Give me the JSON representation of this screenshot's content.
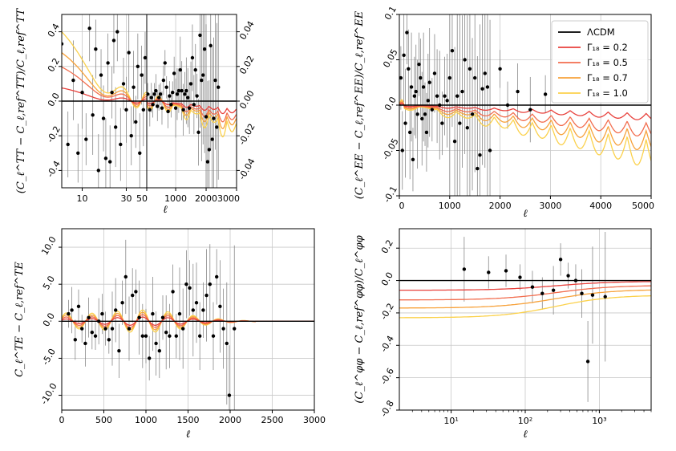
{
  "chart_data": [
    {
      "id": "tt",
      "type": "line",
      "ylabel": "(C_ℓ^TT − C_ℓ,ref^TT)/C_ℓ,ref^TT",
      "xlabel": "ℓ",
      "left_panel": {
        "xscale": "log",
        "xlim": [
          6,
          50
        ],
        "ylim": [
          -0.5,
          0.5
        ],
        "xticks": [
          10,
          30,
          50
        ],
        "xtick_labels": [
          "10",
          "30",
          "50"
        ],
        "yticks": [
          -0.4,
          -0.2,
          0.0,
          0.2,
          0.4
        ],
        "ytick_labels": [
          "-0.4",
          "-0.2",
          "0.0",
          "0.2",
          "0.4"
        ]
      },
      "right_panel": {
        "xscale": "linear",
        "xlim": [
          50,
          3000
        ],
        "ylim": [
          -0.05,
          0.05
        ],
        "xticks": [
          1000,
          2000,
          3000
        ],
        "xtick_labels": [
          "1000",
          "2000",
          "3000"
        ],
        "yticks": [
          -0.04,
          -0.02,
          0.0,
          0.02,
          0.04
        ],
        "ytick_labels": [
          "-0.04",
          "-0.02",
          "0.00",
          "0.02",
          "0.04"
        ]
      },
      "series_low_ell_offset_at_l2": [
        0.0,
        0.1,
        0.27,
        0.38,
        0.55
      ],
      "series_high_ell_suppression_at_3000": [
        0.0,
        0.008,
        0.013,
        0.017,
        0.022
      ],
      "points_low": [
        [
          6,
          0.33
        ],
        [
          7,
          -0.25
        ],
        [
          8,
          0.12
        ],
        [
          9,
          -0.3
        ],
        [
          10,
          0.05
        ],
        [
          11,
          -0.22
        ],
        [
          12,
          0.42
        ],
        [
          13,
          -0.08
        ],
        [
          14,
          0.3
        ],
        [
          15,
          -0.4
        ],
        [
          16,
          0.15
        ],
        [
          17,
          -0.1
        ],
        [
          18,
          -0.33
        ],
        [
          19,
          0.22
        ],
        [
          20,
          -0.35
        ],
        [
          21,
          0.05
        ],
        [
          22,
          0.35
        ],
        [
          23,
          -0.15
        ],
        [
          24,
          0.4
        ],
        [
          26,
          -0.25
        ],
        [
          28,
          0.1
        ],
        [
          30,
          -0.05
        ],
        [
          32,
          0.28
        ],
        [
          34,
          -0.2
        ],
        [
          36,
          0.08
        ],
        [
          38,
          -0.12
        ],
        [
          40,
          0.2
        ],
        [
          42,
          -0.3
        ],
        [
          44,
          0.15
        ],
        [
          46,
          -0.05
        ],
        [
          48,
          0.25
        ]
      ],
      "points_high": [
        [
          80,
          0.004
        ],
        [
          150,
          -0.005
        ],
        [
          200,
          0.002
        ],
        [
          250,
          -0.002
        ],
        [
          300,
          0.004
        ],
        [
          350,
          0.006
        ],
        [
          400,
          -0.003
        ],
        [
          450,
          0.002
        ],
        [
          500,
          0.004
        ],
        [
          550,
          -0.004
        ],
        [
          600,
          0.012
        ],
        [
          650,
          0.022
        ],
        [
          700,
          0.008
        ],
        [
          750,
          -0.006
        ],
        [
          800,
          0.003
        ],
        [
          850,
          -0.002
        ],
        [
          900,
          0.005
        ],
        [
          950,
          0.016
        ],
        [
          1000,
          -0.004
        ],
        [
          1050,
          0.004
        ],
        [
          1100,
          0.006
        ],
        [
          1150,
          0.018
        ],
        [
          1200,
          0.006
        ],
        [
          1250,
          -0.005
        ],
        [
          1300,
          0.004
        ],
        [
          1350,
          0.006
        ],
        [
          1400,
          0.002
        ],
        [
          1450,
          -0.004
        ],
        [
          1500,
          0.01
        ],
        [
          1550,
          0.025
        ],
        [
          1600,
          -0.002
        ],
        [
          1650,
          0.018
        ],
        [
          1700,
          0.003
        ],
        [
          1750,
          -0.018
        ],
        [
          1800,
          0.038
        ],
        [
          1850,
          0.012
        ],
        [
          1900,
          0.015
        ],
        [
          1950,
          0.03
        ],
        [
          2000,
          -0.009
        ],
        [
          2050,
          -0.035
        ],
        [
          2100,
          -0.028
        ],
        [
          2150,
          0.032
        ],
        [
          2200,
          -0.022
        ],
        [
          2250,
          -0.01
        ],
        [
          2300,
          0.012
        ],
        [
          2350,
          -0.015
        ],
        [
          2400,
          0.008
        ]
      ]
    },
    {
      "id": "ee",
      "type": "line",
      "ylabel": "(C_ℓ^EE − C_ℓ,ref^EE)/C_ℓ,ref^EE",
      "xlabel": "ℓ",
      "xscale": "linear",
      "xlim": [
        0,
        5000
      ],
      "ylim": [
        -0.1,
        0.1
      ],
      "xticks": [
        0,
        1000,
        2000,
        3000,
        4000,
        5000
      ],
      "xtick_labels": [
        "0",
        "1000",
        "2000",
        "3000",
        "4000",
        "5000"
      ],
      "yticks": [
        -0.1,
        -0.05,
        0.0,
        0.05,
        0.1
      ],
      "ytick_labels": [
        "-0.1",
        "-0.05",
        "0.0",
        "0.05",
        "0.1"
      ],
      "legend": {
        "placement": "top-right",
        "entries": [
          "ΛCDM",
          "Γ₁₈ = 0.2",
          "Γ₁₈ = 0.5",
          "Γ₁₈ = 0.7",
          "Γ₁₈ = 1.0"
        ]
      },
      "series_suppression_at_5000": [
        0.0,
        0.017,
        0.036,
        0.052,
        0.07
      ],
      "points": [
        [
          30,
          0.03
        ],
        [
          60,
          -0.05
        ],
        [
          90,
          0.055
        ],
        [
          120,
          -0.02
        ],
        [
          150,
          0.08
        ],
        [
          180,
          0.04
        ],
        [
          210,
          -0.03
        ],
        [
          240,
          0.02
        ],
        [
          270,
          -0.06
        ],
        [
          300,
          0.01
        ],
        [
          330,
          0.015
        ],
        [
          360,
          -0.01
        ],
        [
          390,
          0.045
        ],
        [
          420,
          0.03
        ],
        [
          450,
          -0.015
        ],
        [
          480,
          0.02
        ],
        [
          510,
          -0.01
        ],
        [
          540,
          -0.03
        ],
        [
          570,
          0.005
        ],
        [
          600,
          0.025
        ],
        [
          650,
          -0.005
        ],
        [
          700,
          0.035
        ],
        [
          750,
          0.01
        ],
        [
          800,
          0.0
        ],
        [
          850,
          -0.02
        ],
        [
          900,
          0.01
        ],
        [
          950,
          0.005
        ],
        [
          1000,
          0.03
        ],
        [
          1050,
          0.06
        ],
        [
          1100,
          -0.04
        ],
        [
          1150,
          0.01
        ],
        [
          1200,
          -0.02
        ],
        [
          1250,
          0.015
        ],
        [
          1300,
          0.05
        ],
        [
          1350,
          -0.025
        ],
        [
          1400,
          0.04
        ],
        [
          1450,
          -0.01
        ],
        [
          1500,
          0.03
        ],
        [
          1550,
          -0.07
        ],
        [
          1600,
          -0.055
        ],
        [
          1650,
          0.018
        ],
        [
          1700,
          0.035
        ],
        [
          1750,
          0.02
        ],
        [
          1800,
          -0.05
        ],
        [
          2000,
          0.04
        ],
        [
          2150,
          0.0
        ],
        [
          2350,
          0.015
        ],
        [
          2600,
          -0.005
        ],
        [
          2900,
          0.012
        ]
      ]
    },
    {
      "id": "te",
      "type": "line",
      "ylabel": "C_ℓ^TE − C_ℓ,ref^TE",
      "xlabel": "ℓ",
      "xscale": "linear",
      "xlim": [
        0,
        3000
      ],
      "ylim": [
        -12,
        12.5
      ],
      "xticks": [
        0,
        500,
        1000,
        1500,
        2000,
        2500,
        3000
      ],
      "xtick_labels": [
        "0",
        "500",
        "1000",
        "1500",
        "2000",
        "2500",
        "3000"
      ],
      "yticks": [
        -10,
        -5,
        0,
        5,
        10
      ],
      "ytick_labels": [
        "-10.0",
        "-5.0",
        "0.0",
        "5.0",
        "10.0"
      ],
      "points": [
        [
          80,
          1.0
        ],
        [
          120,
          1.5
        ],
        [
          160,
          -2.5
        ],
        [
          200,
          2.0
        ],
        [
          240,
          -1.0
        ],
        [
          280,
          -3.0
        ],
        [
          320,
          0.5
        ],
        [
          360,
          -1.5
        ],
        [
          400,
          -2.0
        ],
        [
          440,
          0.0
        ],
        [
          480,
          1.0
        ],
        [
          520,
          -1.0
        ],
        [
          560,
          -2.5
        ],
        [
          600,
          -1.0
        ],
        [
          640,
          1.5
        ],
        [
          680,
          -4.0
        ],
        [
          720,
          2.5
        ],
        [
          760,
          6.0
        ],
        [
          800,
          -1.0
        ],
        [
          840,
          3.5
        ],
        [
          880,
          4.0
        ],
        [
          920,
          0.5
        ],
        [
          960,
          -2.0
        ],
        [
          1000,
          -2.0
        ],
        [
          1040,
          -5.0
        ],
        [
          1080,
          1.0
        ],
        [
          1120,
          -3.0
        ],
        [
          1160,
          -4.0
        ],
        [
          1200,
          0.5
        ],
        [
          1240,
          -1.5
        ],
        [
          1280,
          -2.0
        ],
        [
          1320,
          4.0
        ],
        [
          1360,
          -2.0
        ],
        [
          1400,
          1.0
        ],
        [
          1440,
          -1.0
        ],
        [
          1480,
          5.0
        ],
        [
          1520,
          4.5
        ],
        [
          1560,
          1.5
        ],
        [
          1600,
          2.5
        ],
        [
          1640,
          -2.0
        ],
        [
          1680,
          1.5
        ],
        [
          1720,
          3.5
        ],
        [
          1760,
          5.0
        ],
        [
          1800,
          -2.0
        ],
        [
          1840,
          6.0
        ],
        [
          1880,
          2.0
        ],
        [
          1920,
          -1.0
        ],
        [
          1960,
          -3.0
        ],
        [
          1990,
          -10.0
        ],
        [
          2050,
          -1.0
        ]
      ]
    },
    {
      "id": "phiphi",
      "type": "line",
      "ylabel": "(C_ℓ^φφ − C_ℓ,ref^φφ)/C_ℓ^φφ",
      "xlabel": "ℓ",
      "xscale": "log",
      "xlim": [
        2,
        5000
      ],
      "ylim": [
        -0.8,
        0.32
      ],
      "xticks": [
        10,
        100,
        1000
      ],
      "xtick_labels": [
        "10¹",
        "10²",
        "10³"
      ],
      "yticks": [
        -0.8,
        -0.6,
        -0.4,
        -0.2,
        0.0,
        0.2
      ],
      "ytick_labels": [
        "-0.8",
        "-0.6",
        "-0.4",
        "-0.2",
        "0.0",
        "0.2"
      ],
      "series_offset_at_l2": [
        0.0,
        -0.06,
        -0.12,
        -0.17,
        -0.23
      ],
      "series_offset_at_5000": [
        0.0,
        -0.005,
        -0.03,
        -0.055,
        -0.09
      ],
      "points": [
        [
          15,
          0.07,
          0.2
        ],
        [
          32,
          0.05,
          0.1
        ],
        [
          55,
          0.06,
          0.1
        ],
        [
          85,
          0.02,
          0.08
        ],
        [
          125,
          -0.04,
          0.1
        ],
        [
          170,
          -0.08,
          0.1
        ],
        [
          240,
          -0.06,
          0.15
        ],
        [
          300,
          0.13,
          0.1
        ],
        [
          380,
          0.03,
          0.08
        ],
        [
          480,
          0.0,
          0.1
        ],
        [
          580,
          -0.08,
          0.15
        ],
        [
          700,
          -0.5,
          0.25
        ],
        [
          810,
          -0.09,
          0.3
        ],
        [
          1200,
          -0.1,
          0.4
        ]
      ]
    }
  ],
  "colors": {
    "lcdm": "#000000",
    "g02": "#e8413c",
    "g05": "#f26d4e",
    "g07": "#f7a23b",
    "g10": "#fbd14b",
    "errorbar": "#888888",
    "point": "#000000"
  }
}
